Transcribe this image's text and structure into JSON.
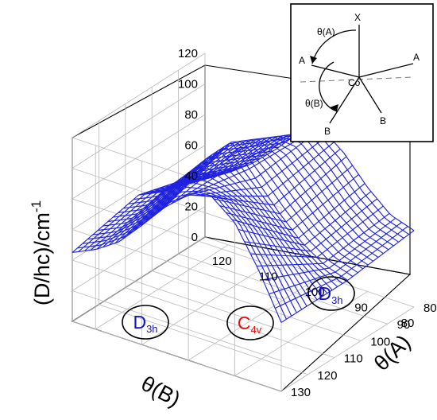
{
  "chart_data": {
    "type": "surface",
    "title": "",
    "zlabel_main": "(D/hc)/cm",
    "zlabel_exponent": "-1",
    "xlabel": "θ(B)",
    "ylabel": "θ(A)",
    "x_ticks": [
      "120",
      "110",
      "100",
      "90",
      "80"
    ],
    "y_ticks": [
      "80",
      "90",
      "100",
      "110",
      "120",
      "130"
    ],
    "z_ticks": [
      "0",
      "20",
      "40",
      "60",
      "80",
      "100",
      "120"
    ],
    "xlim": [
      80,
      125
    ],
    "ylim": [
      80,
      130
    ],
    "zlim": [
      0,
      120
    ],
    "grid": true,
    "mesh_color": "#1f22e0",
    "regions": [
      {
        "label": "D",
        "subscript": "3h",
        "color": "#1010d0"
      },
      {
        "label": "C",
        "subscript": "4v",
        "color": "#e01010"
      },
      {
        "label": "D",
        "subscript": "3h",
        "color": "#1010d0"
      }
    ],
    "surface_profile_theta_B": {
      "theta_B": [
        125,
        120,
        115,
        110,
        105,
        100,
        95,
        90,
        85,
        80
      ],
      "D_at_theta_A_80": [
        42,
        47,
        58,
        72,
        88,
        97,
        85,
        68,
        55,
        50
      ],
      "D_at_theta_A_105": [
        55,
        62,
        78,
        95,
        110,
        92,
        75,
        60,
        50,
        45
      ],
      "D_at_theta_A_130": [
        45,
        52,
        62,
        78,
        95,
        108,
        112,
        100,
        75,
        45
      ]
    }
  },
  "inset": {
    "labels": {
      "x": "X",
      "theta_a": "θ(A)",
      "theta_b": "θ(B)",
      "a_left": "A",
      "a_right": "A",
      "co": "Co",
      "b_left": "B",
      "b_right": "B"
    }
  }
}
